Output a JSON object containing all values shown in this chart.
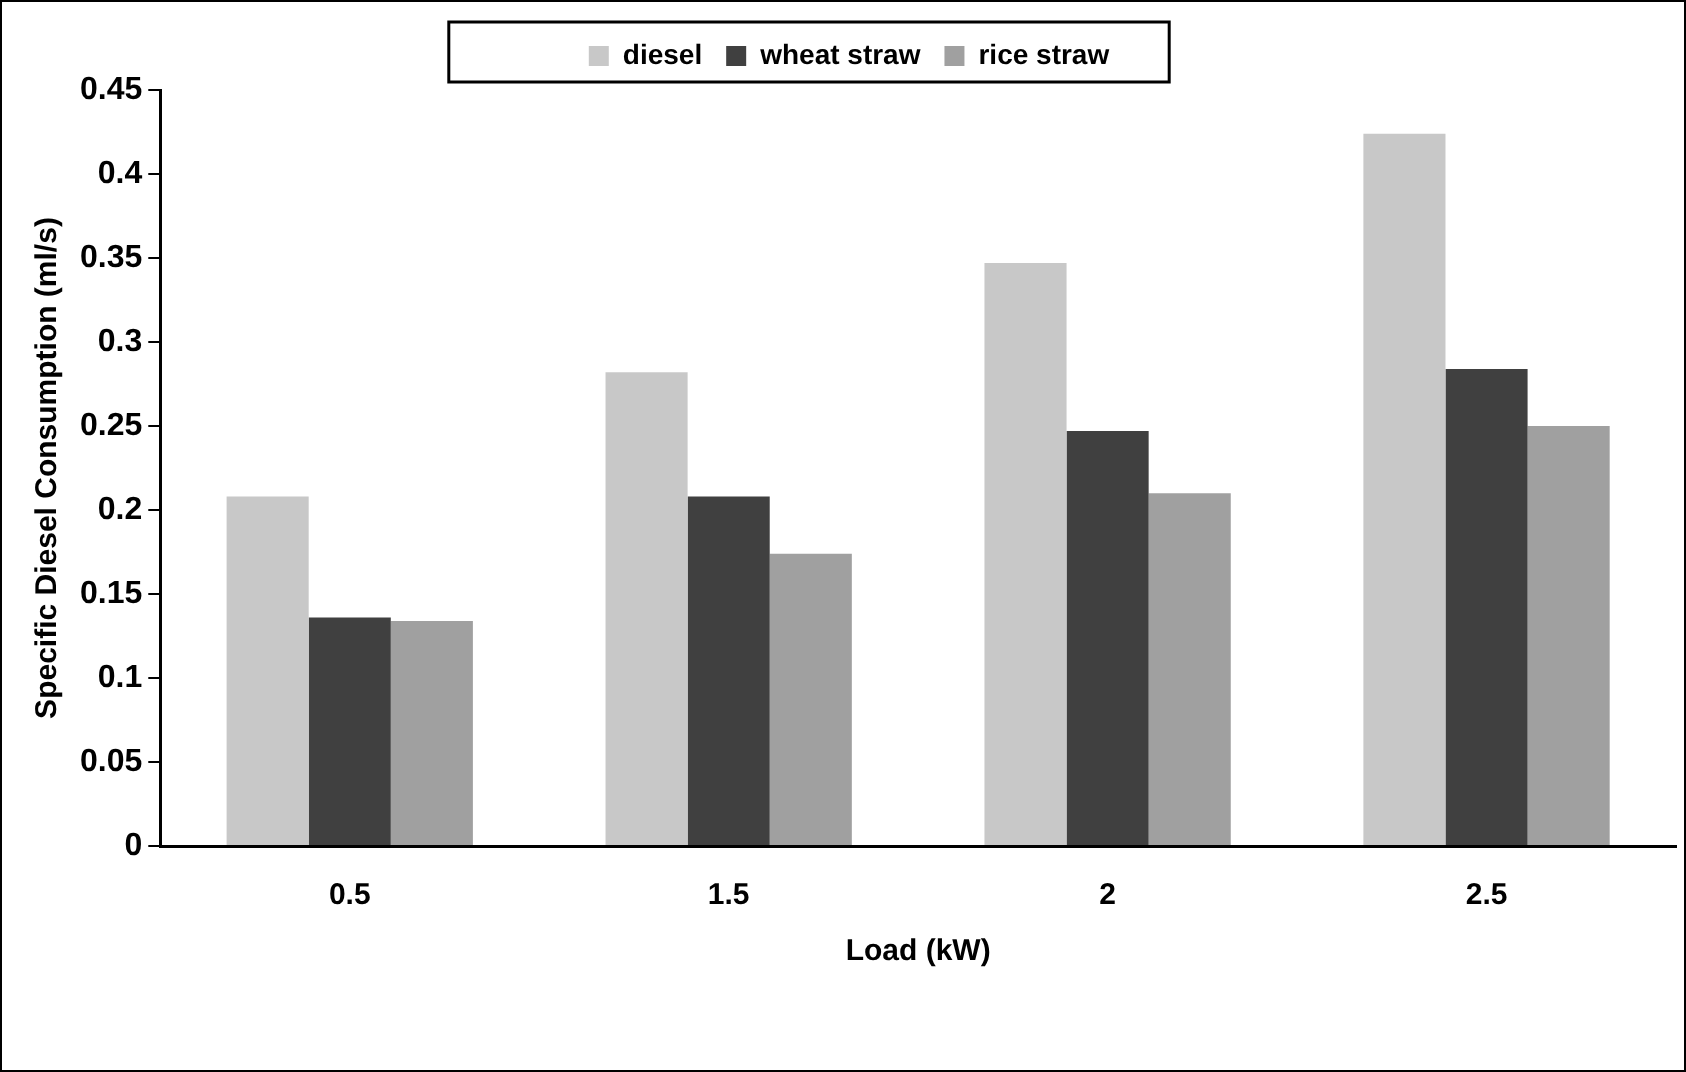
{
  "chart_data": {
    "type": "bar",
    "xlabel": "Load (kW)",
    "ylabel": "Specific Diesel Consumption (ml/s)",
    "categories": [
      "0.5",
      "1.5",
      "2",
      "2.5"
    ],
    "series": [
      {
        "name": "diesel",
        "color": "#c8c8c8",
        "values": [
          0.208,
          0.282,
          0.347,
          0.424
        ]
      },
      {
        "name": "wheat straw",
        "color": "#404040",
        "values": [
          0.136,
          0.208,
          0.247,
          0.284
        ]
      },
      {
        "name": "rice straw",
        "color": "#a0a0a0",
        "values": [
          0.134,
          0.174,
          0.21,
          0.25
        ]
      }
    ],
    "ylim": [
      0,
      0.45
    ],
    "yticks": [
      0,
      0.05,
      0.1,
      0.15,
      0.2,
      0.25,
      0.3,
      0.35,
      0.4,
      0.45
    ],
    "grid": false,
    "legend": "top"
  }
}
